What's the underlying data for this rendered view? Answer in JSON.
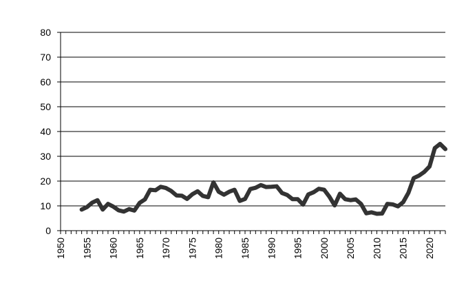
{
  "chart_data": {
    "type": "line",
    "title": "",
    "xlabel": "",
    "ylabel": "",
    "xlim": [
      1950,
      2023
    ],
    "ylim": [
      0,
      80
    ],
    "y_ticks": [
      0,
      10,
      20,
      30,
      40,
      50,
      60,
      70,
      80
    ],
    "x_ticks": [
      1950,
      1955,
      1960,
      1965,
      1970,
      1975,
      1980,
      1985,
      1990,
      1995,
      2000,
      2005,
      2010,
      2015,
      2020
    ],
    "grid": "horizontal",
    "line_color": "#333333",
    "series": [
      {
        "x": [
          1954,
          1955,
          1956,
          1957,
          1958,
          1959,
          1960,
          1961,
          1962,
          1963,
          1964,
          1965,
          1966,
          1967,
          1968,
          1969,
          1970,
          1971,
          1972,
          1973,
          1974,
          1975,
          1976,
          1977,
          1978,
          1979,
          1980,
          1981,
          1982,
          1983,
          1984,
          1985,
          1986,
          1987,
          1988,
          1989,
          1990,
          1991,
          1992,
          1993,
          1994,
          1995,
          1996,
          1997,
          1998,
          1999,
          2000,
          2001,
          2002,
          2003,
          2004,
          2005,
          2006,
          2007,
          2008,
          2009,
          2010,
          2011,
          2012,
          2013,
          2014,
          2015,
          2016,
          2017,
          2018,
          2019,
          2020,
          2021,
          2022,
          2023
        ],
        "values": [
          8.5,
          9.5,
          11.3,
          12.3,
          8.5,
          10.8,
          9.7,
          8.2,
          7.7,
          8.7,
          8.1,
          11.2,
          12.6,
          16.5,
          16.3,
          17.7,
          17.2,
          16.0,
          14.2,
          14.1,
          12.8,
          14.7,
          15.9,
          14.0,
          13.5,
          19.5,
          15.7,
          14.5,
          15.7,
          16.5,
          12.0,
          12.8,
          16.8,
          17.3,
          18.4,
          17.6,
          17.7,
          17.9,
          15.2,
          14.4,
          12.7,
          12.7,
          10.5,
          14.6,
          15.5,
          16.9,
          16.5,
          13.7,
          10.2,
          14.9,
          12.7,
          12.3,
          12.6,
          10.8,
          7.0,
          7.4,
          6.8,
          6.9,
          10.8,
          10.6,
          9.8,
          11.5,
          15.3,
          21.2,
          22.2,
          23.7,
          25.9,
          33.3,
          35.0,
          32.9
        ]
      }
    ]
  }
}
